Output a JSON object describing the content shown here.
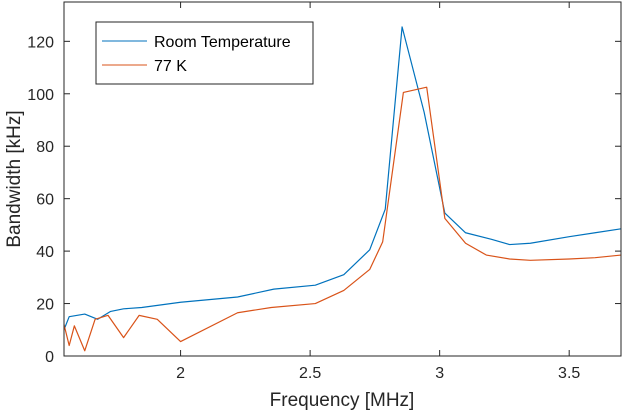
{
  "chart_data": {
    "type": "line",
    "title": "",
    "xlabel": "Frequency [MHz]",
    "ylabel": "Bandwidth [kHz]",
    "xlim": [
      1.55,
      3.7
    ],
    "ylim": [
      0,
      135
    ],
    "xticks": [
      2,
      2.5,
      3,
      3.5
    ],
    "xtick_labels": [
      "2",
      "2.5",
      "3",
      "3.5"
    ],
    "yticks": [
      0,
      20,
      40,
      60,
      80,
      100,
      120
    ],
    "ytick_labels": [
      "0",
      "20",
      "40",
      "60",
      "80",
      "100",
      "120"
    ],
    "grid": false,
    "legend_position": "top-left",
    "series": [
      {
        "name": "Room Temperature",
        "color": "#0072BD",
        "x": [
          1.55,
          1.57,
          1.63,
          1.68,
          1.73,
          1.78,
          1.85,
          2.0,
          2.22,
          2.36,
          2.52,
          2.63,
          2.73,
          2.79,
          2.855,
          2.94,
          3.02,
          3.1,
          3.2,
          3.27,
          3.35,
          3.5,
          3.6,
          3.7
        ],
        "y": [
          10,
          15,
          16,
          14,
          17,
          18,
          18.5,
          20.5,
          22.5,
          25.5,
          27,
          31,
          40.5,
          56,
          125.5,
          93,
          54.5,
          47,
          44.5,
          42.5,
          43,
          45.5,
          47,
          48.5
        ]
      },
      {
        "name": "77 K",
        "color": "#D95319",
        "x": [
          1.55,
          1.57,
          1.59,
          1.63,
          1.67,
          1.72,
          1.78,
          1.84,
          1.91,
          2.0,
          2.22,
          2.35,
          2.52,
          2.63,
          2.73,
          2.78,
          2.86,
          2.95,
          3.02,
          3.1,
          3.18,
          3.27,
          3.35,
          3.5,
          3.6,
          3.7
        ],
        "y": [
          12,
          4,
          11.5,
          2,
          14,
          15.5,
          7,
          15.5,
          14,
          5.5,
          16.5,
          18.5,
          20,
          25,
          33,
          43.5,
          100.5,
          102.5,
          52.5,
          43,
          38.5,
          37,
          36.5,
          37,
          37.5,
          38.5
        ]
      }
    ]
  }
}
